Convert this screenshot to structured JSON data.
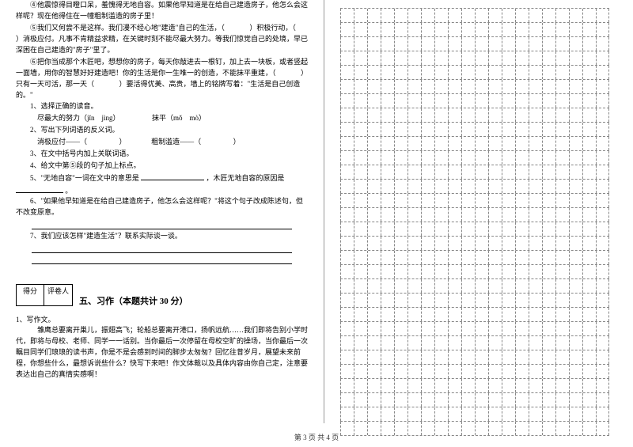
{
  "left": {
    "p4": "④他震惊得目瞪口呆，羞愧得无地自容。如果他早知道是在给自己建造房子，他怎么会这样呢？现在他得住在一幢粗制滥造的房子里！",
    "p5a": "⑤我们又何尝不是这样。我们漫不经心地\"建造\"自己的生活，（",
    "p5b": "）积极行动，（",
    "p5c": "）消极应付。凡事不肯精益求精，在关键时刻不能尽最大努力。等我们惊觉自己的处境，早已深困在自己建造的\"房子\"里了。",
    "p6": "⑥把你当成那个木匠吧，想想你的房子，每天你敲进去一根钉，加上去一块板，或者竖起一面墙，用你的智慧好好建造吧！你的生活是你一生唯一的创造，不能抹平重建，（",
    "p6b": "）只有一天可活，那一天（",
    "p6c": "）要活得优美、高贵，墙上的铭牌写着：\"生活是自己创造的。\"",
    "q1": "1、选择正确的读音。",
    "q1a": "尽最大的努力（jǐn　jìng）",
    "q1b": "抹平（mǒ　mò）",
    "q2": "2、写出下列词语的反义词。",
    "q2a": "消极应付——（",
    "q2a2": "）",
    "q2b": "粗制滥造——（",
    "q2b2": "）",
    "q3": "3、在文中括号内加上关联词语。",
    "q4": "4、给文中第⑤段的句子加上标点。",
    "q5a": "5、\"无地自容\"一词在文中的意思是",
    "q5b": "，木匠无地自容的原因是",
    "q5c": "。",
    "q6": "6、\"如果他早知道是在给自己建造房子，他怎么会这样呢？\"将这个句子改成陈述句，但不改变原意。",
    "q7": "7、我们应该怎样\"建造生活\"？联系实际谈一谈。",
    "score_l": "得分",
    "score_r": "评卷人",
    "section5": "五、习作（本题共计 30 分）",
    "w1": "1、写作文。",
    "w_body": "雏鹰总要离开巢儿，振翅高飞；轮船总要离开港口，扬帆远航……我们即将告别小学时代，即将与母校、老师、同学一一话别。当你最后一次停留在母校空旷的操场，当你最后一次瞩目同学们琅琅的读书声，你是不是会感到时间的脚步太匆匆？回忆往昔岁月，展望未来前程，你想些什么，最想诉说些什么？快写下来吧！作文体裁以及具体内容由你自己定，注意要表达出自己的真情实感啊！"
  },
  "footer": "第 3 页 共 4 页",
  "grid": {
    "rows": 30,
    "cols": 20
  },
  "colors": {
    "text": "#000000",
    "border": "#888888",
    "bg": "#ffffff"
  }
}
